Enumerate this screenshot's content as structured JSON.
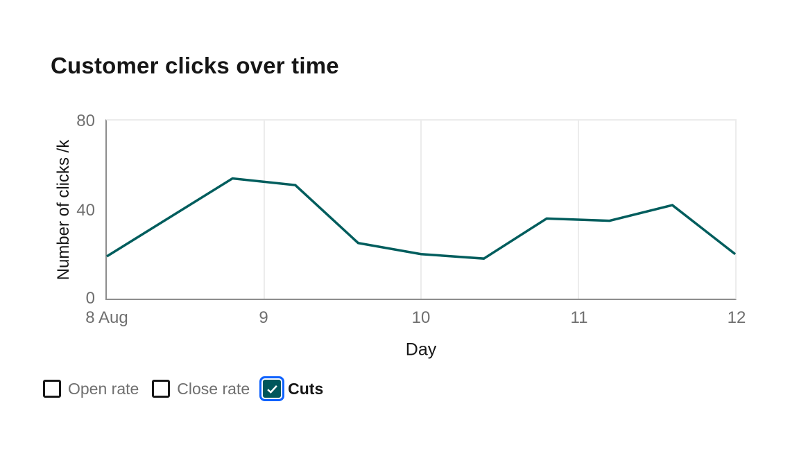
{
  "title": "Customer clicks over time",
  "chart_data": {
    "type": "line",
    "title": "Customer clicks over time",
    "xlabel": "Day",
    "ylabel": "Number of clicks /k",
    "x": [
      8,
      8.8,
      9.2,
      9.6,
      10,
      10.4,
      10.8,
      11.2,
      11.6,
      12
    ],
    "series": [
      {
        "name": "Cuts",
        "values": [
          19,
          54,
          51,
          25,
          20,
          18,
          36,
          35,
          42,
          20
        ],
        "color": "#005d5d"
      }
    ],
    "xlim": [
      8,
      12
    ],
    "ylim": [
      0,
      80
    ],
    "x_tick_labels": [
      "8 Aug",
      "9",
      "10",
      "11",
      "12"
    ],
    "y_tick_labels": [
      "0",
      "40",
      "80"
    ],
    "grid": "vertical gridlines at each x tick, no horizontal gridlines, light top and right plot borders",
    "legend_position": "bottom-left"
  },
  "axes": {
    "y_title": "Number of clicks /k",
    "x_title": "Day",
    "y_ticks": [
      "80",
      "40",
      "0"
    ],
    "x_ticks": [
      "8 Aug",
      "9",
      "10",
      "11",
      "12"
    ]
  },
  "legend": {
    "items": [
      {
        "label": "Open rate",
        "checked": false
      },
      {
        "label": "Close rate",
        "checked": false
      },
      {
        "label": "Cuts",
        "checked": true
      }
    ]
  },
  "colors": {
    "series_teal": "#005d5d",
    "checkbox_checked_fill": "#00565b",
    "focus_ring_blue": "#0f62fe",
    "axis_line": "#8d8d8d",
    "gridline": "#ececec",
    "tick_text": "#6f6f6f",
    "heading_text": "#161616"
  }
}
